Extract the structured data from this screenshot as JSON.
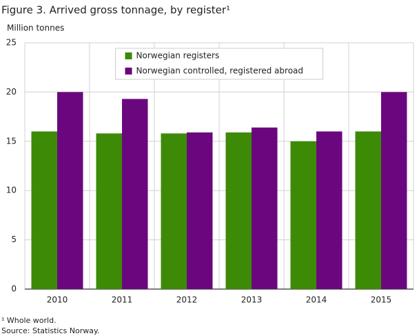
{
  "chart_data": {
    "type": "bar",
    "title": "Figure 3. Arrived gross tonnage, by register¹",
    "y_label": "Million tonnes",
    "categories": [
      "2010",
      "2011",
      "2012",
      "2013",
      "2014",
      "2015"
    ],
    "series": [
      {
        "name": "Norwegian registers",
        "color": "#3d8a06",
        "values": [
          16.0,
          15.8,
          15.8,
          15.9,
          15.0,
          16.0
        ]
      },
      {
        "name": "Norwegian controlled, registered abroad",
        "color": "#6b077e",
        "values": [
          20.0,
          19.3,
          15.9,
          16.4,
          16.0,
          20.0
        ]
      }
    ],
    "ylim": [
      0,
      25
    ],
    "yticks": [
      0,
      5,
      10,
      15,
      20,
      25
    ],
    "grid": true,
    "legend_position": "top-center",
    "footnotes": [
      "¹ Whole world.",
      "Source: Statistics Norway."
    ]
  }
}
